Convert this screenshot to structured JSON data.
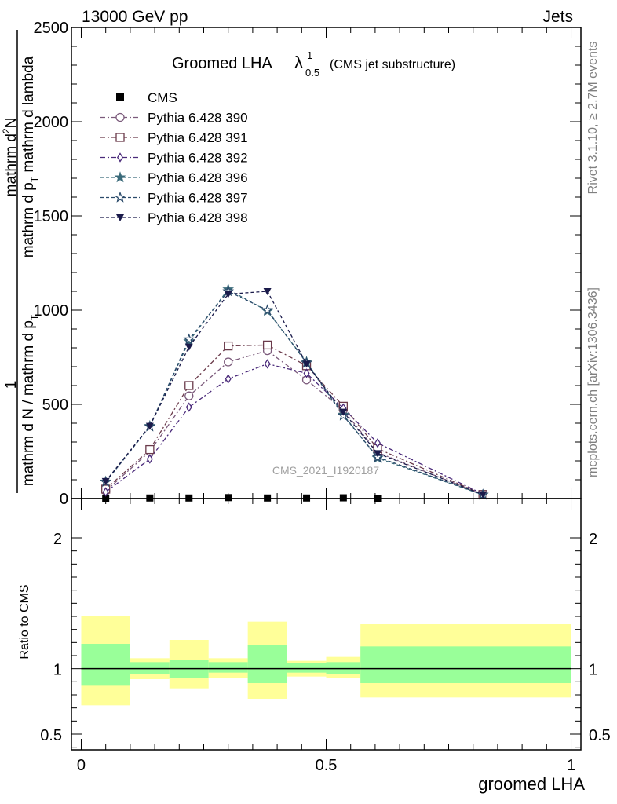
{
  "header": {
    "left": "13000 GeV pp",
    "right": "Jets"
  },
  "main_title": "Groomed LHA",
  "title_suffix": "(CMS jet substructure)",
  "lambda_symbol": "λ",
  "lambda_sup": "1",
  "lambda_sub": "0.5",
  "side_labels": {
    "rivet": "Rivet 3.1.10, ≥ 2.7M events",
    "mcplots": "mcplots.cern.ch [arXiv:1306.3436]"
  },
  "watermark": "CMS_2021_I1920187",
  "y_label": {
    "numerator_top": "1",
    "denominator_top": "mathrm d N / mathrm d p",
    "denominator_top_sub": "T",
    "numerator_bottom": "mathrm d",
    "numerator_bottom_sup": "2",
    "numerator_bottom_rest": "N",
    "denominator_bottom": "mathrm d p",
    "denominator_bottom_sub": "T",
    "denominator_bottom_rest": "mathrm d p",
    "denominator_bottom_sub2": "T",
    "denominator_bottom_end": "mathrm d lambda"
  },
  "ratio_label": "Ratio to CMS",
  "x_label": "groomed LHA",
  "colors": {
    "CMS": "#000000",
    "s390": "#7b5a7b",
    "s391": "#6b3b4b",
    "s392": "#4a2a7a",
    "s396": "#3a6a7a",
    "s397": "#2a4a6a",
    "s398": "#1a1a4a",
    "band_outer": "#ffff99",
    "band_inner": "#99ff99"
  },
  "chart_data": [
    {
      "type": "line",
      "xlim": [
        -0.02,
        1.02
      ],
      "ylim": [
        0,
        2500
      ],
      "yticks": [
        0,
        500,
        1000,
        1500,
        2000,
        2500
      ],
      "ytick_labels": [
        "0",
        "500",
        "1000",
        "1500",
        "2000",
        "2500"
      ],
      "legend_position": "top-left",
      "x": [
        0.05,
        0.14,
        0.22,
        0.3,
        0.38,
        0.46,
        0.535,
        0.605,
        0.82
      ],
      "series": [
        {
          "name": "CMS",
          "marker": "square",
          "values": [
            2,
            3,
            3,
            5,
            3,
            3,
            4,
            2,
            0
          ]
        },
        {
          "name": "Pythia 6.428 390",
          "marker": "circle-open",
          "dash": "6,3,2,3",
          "values": [
            40,
            250,
            545,
            725,
            785,
            630,
            470,
            245,
            20
          ]
        },
        {
          "name": "Pythia 6.428 391",
          "marker": "square-open",
          "dash": "6,3,2,3",
          "values": [
            50,
            260,
            600,
            810,
            815,
            705,
            490,
            265,
            22
          ]
        },
        {
          "name": "Pythia 6.428 392",
          "marker": "diamond-open",
          "dash": "6,3,2,3",
          "values": [
            35,
            210,
            485,
            635,
            715,
            665,
            480,
            295,
            24
          ]
        },
        {
          "name": "Pythia 6.428 396",
          "marker": "star",
          "dash": "4,3",
          "values": [
            90,
            385,
            835,
            1110,
            995,
            725,
            445,
            215,
            20
          ]
        },
        {
          "name": "Pythia 6.428 397",
          "marker": "star-open",
          "dash": "4,3",
          "values": [
            88,
            382,
            845,
            1100,
            1000,
            720,
            440,
            220,
            21
          ]
        },
        {
          "name": "Pythia 6.428 398",
          "marker": "triangle-down",
          "dash": "4,3",
          "values": [
            92,
            385,
            805,
            1085,
            1100,
            715,
            460,
            240,
            22
          ]
        }
      ]
    },
    {
      "type": "area",
      "xlim": [
        -0.02,
        1.02
      ],
      "ylim": [
        0.38,
        2.3
      ],
      "yticks": [
        0.5,
        1,
        2
      ],
      "ytick_labels": [
        "0.5",
        "1",
        "2"
      ],
      "xticks": [
        0,
        0.5,
        1
      ],
      "xtick_labels": [
        "0",
        "0.5",
        "1"
      ],
      "xlabel": "groomed LHA",
      "ylabel": "Ratio to CMS",
      "bins": [
        {
          "lo": 0.0,
          "hi": 0.1,
          "inner": [
            0.87,
            1.19
          ],
          "outer": [
            0.72,
            1.4
          ]
        },
        {
          "lo": 0.1,
          "hi": 0.18,
          "inner": [
            0.96,
            1.05
          ],
          "outer": [
            0.92,
            1.08
          ]
        },
        {
          "lo": 0.18,
          "hi": 0.26,
          "inner": [
            0.93,
            1.07
          ],
          "outer": [
            0.85,
            1.22
          ]
        },
        {
          "lo": 0.26,
          "hi": 0.34,
          "inner": [
            0.97,
            1.05
          ],
          "outer": [
            0.93,
            1.08
          ]
        },
        {
          "lo": 0.34,
          "hi": 0.42,
          "inner": [
            0.89,
            1.18
          ],
          "outer": [
            0.77,
            1.36
          ]
        },
        {
          "lo": 0.42,
          "hi": 0.5,
          "inner": [
            0.97,
            1.04
          ],
          "outer": [
            0.94,
            1.06
          ]
        },
        {
          "lo": 0.5,
          "hi": 0.57,
          "inner": [
            0.96,
            1.05
          ],
          "outer": [
            0.93,
            1.09
          ]
        },
        {
          "lo": 0.57,
          "hi": 1.0,
          "inner": [
            0.89,
            1.17
          ],
          "outer": [
            0.78,
            1.34
          ]
        }
      ]
    }
  ]
}
